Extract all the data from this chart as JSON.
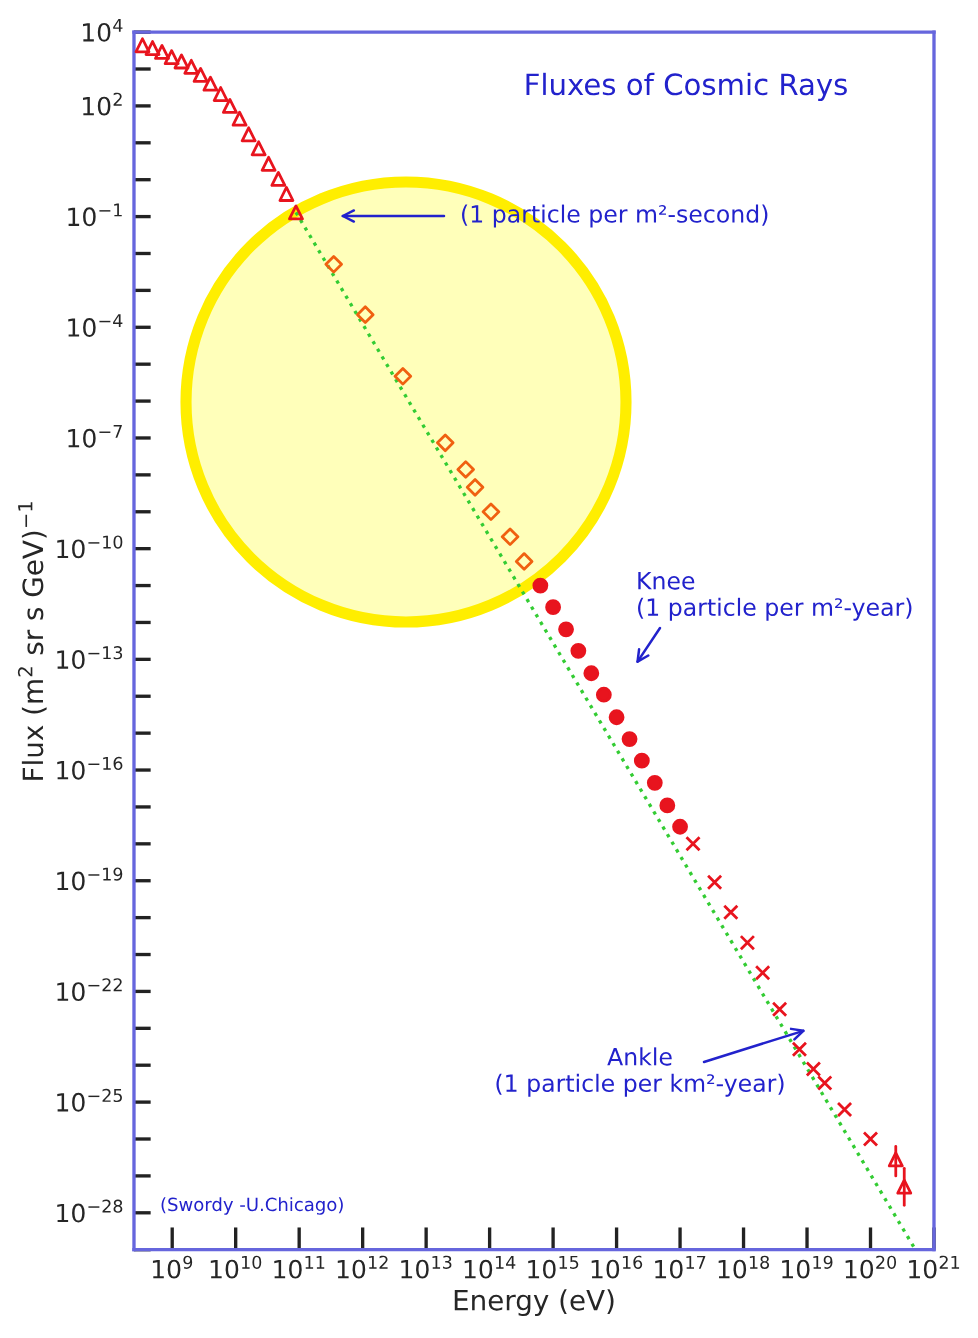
{
  "chart_data": {
    "type": "scatter",
    "title": "Fluxes of Cosmic Rays",
    "xlabel": "Energy (eV)",
    "ylabel": "Flux (m$^{2}$ sr s GeV)$^{−1}$",
    "log": "xy",
    "grid": false,
    "legend": false,
    "xlim": [
      250000000.0,
      1e+21
    ],
    "xticks": [
      {
        "value": 1000000000.0,
        "label": "10$^{9}$"
      },
      {
        "value": 10000000000.0,
        "label": "10$^{10}$"
      },
      {
        "value": 100000000000.0,
        "label": "10$^{11}$"
      },
      {
        "value": 1000000000000.0,
        "label": "10$^{12}$"
      },
      {
        "value": 10000000000000.0,
        "label": "10$^{13}$"
      },
      {
        "value": 100000000000000.0,
        "label": "10$^{14}$"
      },
      {
        "value": 1000000000000000.0,
        "label": "10$^{15}$"
      },
      {
        "value": 1e+16,
        "label": "10$^{16}$"
      },
      {
        "value": 1e+17,
        "label": "10$^{17}$"
      },
      {
        "value": 1e+18,
        "label": "10$^{18}$"
      },
      {
        "value": 1e+19,
        "label": "10$^{19}$"
      },
      {
        "value": 1e+20,
        "label": "10$^{20}$"
      },
      {
        "value": 1e+21,
        "label": "10$^{21}$"
      }
    ],
    "ylim": [
      1e-29,
      10000.0
    ],
    "yticks": [
      {
        "value": 10000.0,
        "label": "10$^{4}$"
      },
      {
        "value": 1000.0,
        "label": null
      },
      {
        "value": 100.0,
        "label": "10$^{2}$"
      },
      {
        "value": 10.0,
        "label": null
      },
      {
        "value": 1,
        "label": null
      },
      {
        "value": 0.1,
        "label": "10$^{−1}$"
      },
      {
        "value": 0.01,
        "label": null
      },
      {
        "value": 0.001,
        "label": null
      },
      {
        "value": 0.0001,
        "label": "10$^{−4}$"
      },
      {
        "value": 1e-05,
        "label": null
      },
      {
        "value": 1e-06,
        "label": null
      },
      {
        "value": 1e-07,
        "label": "10$^{−7}$"
      },
      {
        "value": 1e-08,
        "label": null
      },
      {
        "value": 1e-09,
        "label": null
      },
      {
        "value": 1e-10,
        "label": "10$^{−10}$"
      },
      {
        "value": 1e-11,
        "label": null
      },
      {
        "value": 1e-12,
        "label": null
      },
      {
        "value": 1e-13,
        "label": "10$^{−13}$"
      },
      {
        "value": 1e-14,
        "label": null
      },
      {
        "value": 1e-15,
        "label": null
      },
      {
        "value": 1e-16,
        "label": "10$^{−16}$"
      },
      {
        "value": 1e-17,
        "label": null
      },
      {
        "value": 1e-18,
        "label": null
      },
      {
        "value": 1e-19,
        "label": "10$^{−19}$"
      },
      {
        "value": 1e-20,
        "label": null
      },
      {
        "value": 1e-21,
        "label": null
      },
      {
        "value": 1e-22,
        "label": "10$^{−22}$"
      },
      {
        "value": 1e-23,
        "label": null
      },
      {
        "value": 1e-24,
        "label": null
      },
      {
        "value": 1e-25,
        "label": "10$^{−25}$"
      },
      {
        "value": 1e-26,
        "label": null
      },
      {
        "value": 1e-27,
        "label": null
      },
      {
        "value": 1e-28,
        "label": "10$^{−28}$"
      },
      {
        "value": 1e-29,
        "label": null
      }
    ],
    "series": [
      {
        "type": "scatter",
        "marker": "triangle",
        "color": "#e8141e",
        "x": [
          340000000.0,
          490000000.0,
          690000000.0,
          980000000.0,
          1400000000.0,
          2000000000.0,
          2800000000.0,
          4000000000.0,
          5800000000.0,
          8100000000.0,
          11500000000.0,
          16000000000.0,
          23000000000.0,
          33000000000.0,
          47000000000.0,
          63000000000.0,
          89000000000.0
        ],
        "values": [
          4400,
          3700,
          2900,
          2100,
          1600,
          1150,
          690,
          400,
          210,
          100,
          45,
          17,
          7.1,
          2.7,
          1.05,
          0.41,
          0.13
        ]
      },
      {
        "type": "scatter",
        "marker": "diamond",
        "color": "#f06010",
        "x": [
          350000000000.0,
          1100000000000.0,
          4300000000000.0,
          20000000000000.0,
          42000000000000.0,
          59000000000000.0,
          105000000000000.0,
          210000000000000.0,
          350000000000000.0
        ],
        "values": [
          0.0051,
          0.00022,
          4.7e-06,
          7.4e-08,
          1.4e-08,
          4.6e-09,
          1e-09,
          2.1e-10,
          4.5e-11
        ]
      },
      {
        "type": "scatter",
        "marker": "circle",
        "color": "#e8141e",
        "x": [
          630000000000000.0,
          1000000000000000.0,
          1600000000000000.0,
          2500000000000000.0,
          4000000000000000.0,
          6300000000000000.0,
          1e+16,
          1.6e+16,
          2.5e+16,
          4e+16,
          6.3e+16,
          1e+17
        ],
        "values": [
          1e-11,
          2.6e-12,
          6.5e-13,
          1.7e-13,
          4.2e-14,
          1.1e-14,
          2.7e-15,
          6.9e-16,
          1.8e-16,
          4.5e-17,
          1.1e-17,
          2.9e-18
        ]
      },
      {
        "type": "scatter",
        "marker": "cross",
        "color": "#e8141e",
        "x": [
          1.6e+17,
          3.5e+17,
          6.3e+17,
          1.15e+18,
          2e+18,
          3.7e+18,
          7.6e+18,
          1.26e+19,
          1.9e+19,
          3.9e+19,
          1e+20
        ],
        "values": [
          1e-18,
          9.1e-20,
          1.4e-20,
          2.1e-21,
          3.2e-22,
          3.3e-23,
          2.7e-24,
          7.9e-25,
          3.3e-25,
          6.3e-26,
          1e-26
        ]
      },
      {
        "type": "scatter",
        "marker": "triangle",
        "color": "#e8141e",
        "x": [
          2.5e+20,
          3.4e+20
        ],
        "values": [
          2.8e-27,
          5.1e-28
        ],
        "errors": [
          [
            1e-27,
            6.3e-27
          ],
          [
            1.6e-28,
            1.6e-27
          ]
        ]
      },
      {
        "type": "line",
        "marker": "none",
        "line_style": "dotted",
        "color": "#33cc33",
        "x": [
          89000000000.0,
          5.1e+20
        ],
        "values": [
          0.13,
          1e-29
        ]
      }
    ],
    "annotations": [
      "(1 particle per m²-second)",
      "Knee\n(1 particle per m²-year)",
      "Ankle\n(1 particle per km²-year)",
      "(Swordy -U.Chicago)"
    ]
  }
}
